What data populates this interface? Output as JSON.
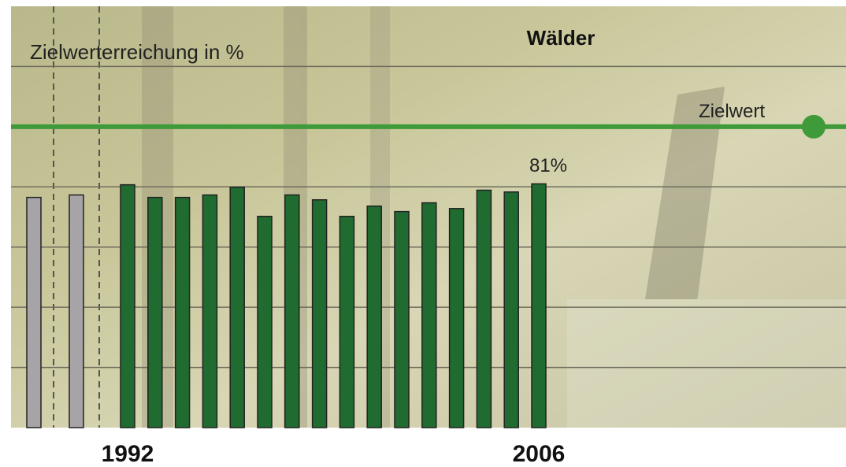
{
  "chart_data": {
    "type": "bar",
    "title": "Wälder",
    "y_label": "Zielwerterreichung in %",
    "categories": [
      null,
      null,
      "1992",
      null,
      null,
      null,
      null,
      null,
      null,
      null,
      null,
      null,
      null,
      null,
      null,
      null,
      null,
      "2006"
    ],
    "values": [
      76.5,
      77.3,
      80.7,
      76.5,
      76.5,
      77.3,
      79.9,
      70.2,
      77.3,
      75.7,
      70.2,
      73.6,
      71.8,
      74.7,
      72.8,
      78.9,
      78.3,
      81
    ],
    "value_labels": [
      null,
      null,
      null,
      null,
      null,
      null,
      null,
      null,
      null,
      null,
      null,
      null,
      null,
      null,
      null,
      null,
      null,
      "81%"
    ],
    "colors": [
      "#a7a4a8",
      "#a7a4a8",
      "#1f6b30",
      "#1f6b30",
      "#1f6b30",
      "#1f6b30",
      "#1f6b30",
      "#1f6b30",
      "#1f6b30",
      "#1f6b30",
      "#1f6b30",
      "#1f6b30",
      "#1f6b30",
      "#1f6b30",
      "#1f6b30",
      "#1f6b30",
      "#1f6b30",
      "#1f6b30"
    ],
    "ylim": [
      0,
      140
    ],
    "yticks": [
      20,
      40,
      60,
      80,
      120
    ],
    "grid": true,
    "target": {
      "value": 100,
      "label": "Zielwert",
      "color": "#3f9a3a"
    }
  }
}
